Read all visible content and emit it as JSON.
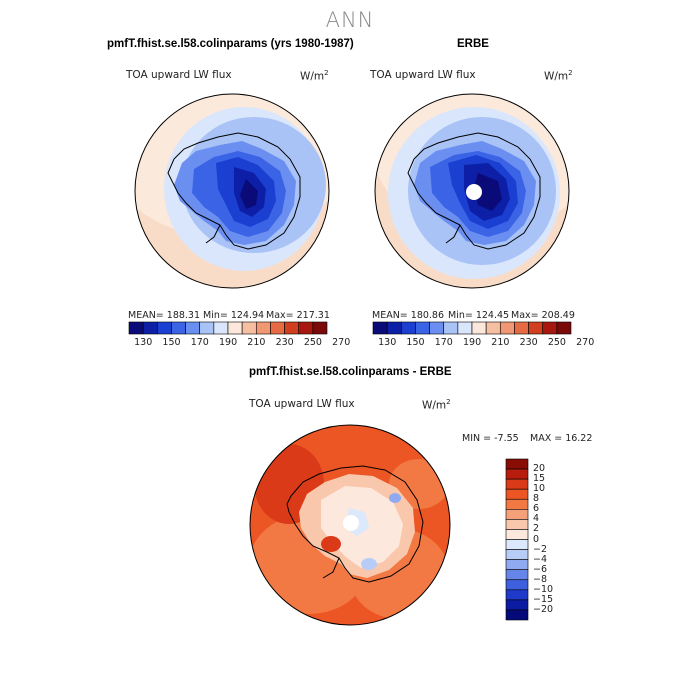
{
  "season": "ANN",
  "panels": {
    "model": {
      "title": "pmfT.fhist.se.l58.colinparams (yrs 1980-1987)",
      "variable": "TOA upward LW flux",
      "units": "W/m",
      "units_exp": "2",
      "mean": "MEAN= 188.31",
      "min": "Min= 124.94",
      "max": "Max= 217.31"
    },
    "obs": {
      "title": "ERBE",
      "variable": "TOA upward LW flux",
      "units": "W/m",
      "units_exp": "2",
      "mean": "MEAN= 180.86",
      "min": "Min= 124.45",
      "max": "Max= 208.49"
    },
    "diff": {
      "title": "pmfT.fhist.se.l58.colinparams - ERBE",
      "variable": "TOA upward LW flux",
      "units": "W/m",
      "units_exp": "2",
      "min": "MIN =   -7.55",
      "max": "MAX =   16.22"
    }
  },
  "colorbar_h": {
    "colors": [
      "#0a0a78",
      "#0c1fa6",
      "#1a3fd1",
      "#3b63e6",
      "#6b8ff0",
      "#a9c3f7",
      "#d9e6fb",
      "#fbe8da",
      "#f6bfa2",
      "#f09874",
      "#e66b45",
      "#d23f20",
      "#a8170f",
      "#7a0a0a"
    ],
    "labels": [
      "130",
      "150",
      "170",
      "190",
      "210",
      "230",
      "250",
      "270"
    ]
  },
  "colorbar_v": {
    "colors": [
      "#8a0d05",
      "#b81c0c",
      "#db3a18",
      "#ec5524",
      "#f27844",
      "#f6a07a",
      "#f9c8ac",
      "#fce8dc",
      "#dce8fb",
      "#b7ccf6",
      "#8faaf0",
      "#6685e8",
      "#3e5fde",
      "#1f3ac8",
      "#0b1ca3",
      "#050a78"
    ],
    "labels": [
      "20",
      "15",
      "10",
      "8",
      "6",
      "4",
      "2",
      "0",
      "−2",
      "−4",
      "−6",
      "−8",
      "−10",
      "−15",
      "−20"
    ]
  }
}
